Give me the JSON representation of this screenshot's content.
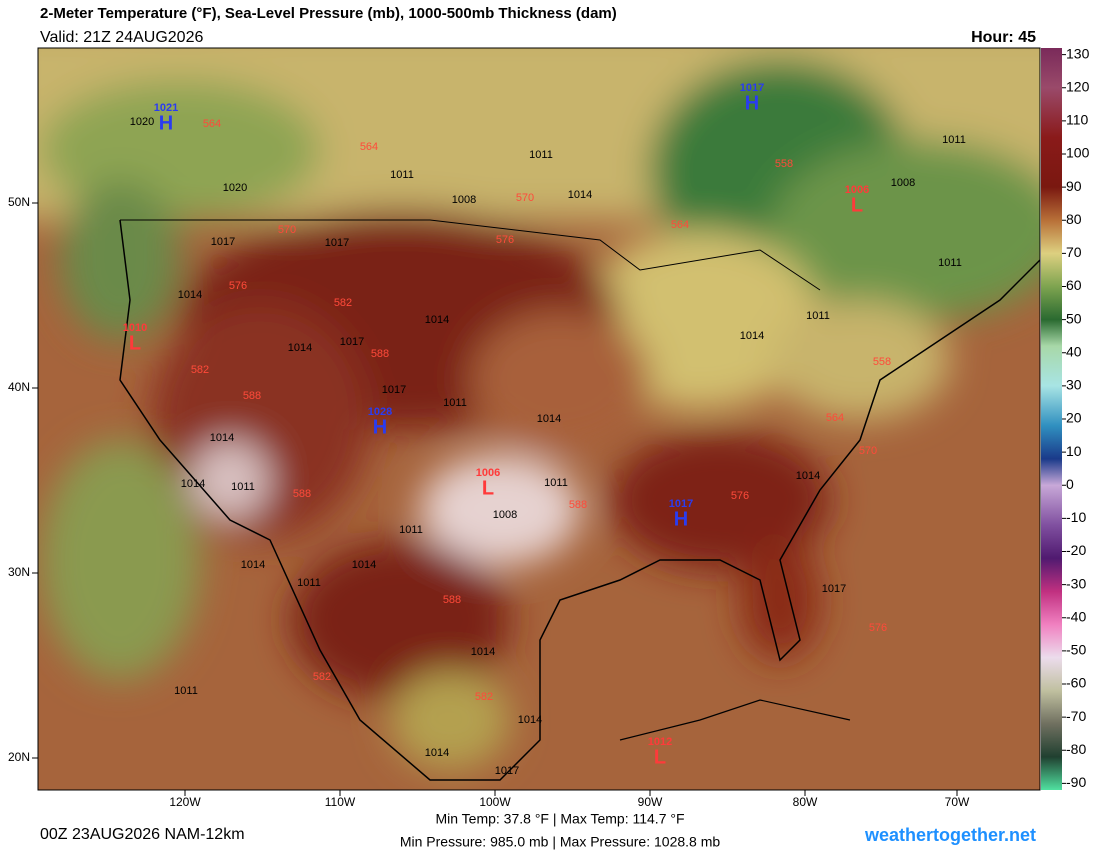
{
  "header": {
    "title": "2-Meter Temperature (°F), Sea-Level Pressure (mb), 1000-500mb Thickness (dam)",
    "valid": "Valid: 21Z 24AUG2026",
    "hour": "Hour: 45"
  },
  "colorbar": {
    "range": [
      -92,
      132
    ],
    "ticks": [
      130,
      120,
      110,
      100,
      90,
      80,
      70,
      60,
      50,
      40,
      30,
      20,
      10,
      0,
      -10,
      -20,
      -30,
      -40,
      -50,
      -60,
      -70,
      -80,
      -90
    ],
    "stops": [
      {
        "value": 132,
        "color": "#7a2a5a"
      },
      {
        "value": 120,
        "color": "#9a4a6a"
      },
      {
        "value": 105,
        "color": "#8a1a1a"
      },
      {
        "value": 90,
        "color": "#7a1810"
      },
      {
        "value": 80,
        "color": "#b87038"
      },
      {
        "value": 70,
        "color": "#ddd080"
      },
      {
        "value": 60,
        "color": "#7ea450"
      },
      {
        "value": 50,
        "color": "#2a6a30"
      },
      {
        "value": 42,
        "color": "#a8d8a8"
      },
      {
        "value": 30,
        "color": "#a8e4e4"
      },
      {
        "value": 18,
        "color": "#3090c0"
      },
      {
        "value": 8,
        "color": "#1a3a8a"
      },
      {
        "value": 0,
        "color": "#c8a8d8"
      },
      {
        "value": -12,
        "color": "#8050a0"
      },
      {
        "value": -22,
        "color": "#501a70"
      },
      {
        "value": -32,
        "color": "#c03080"
      },
      {
        "value": -42,
        "color": "#f080c0"
      },
      {
        "value": -52,
        "color": "#ecdcec"
      },
      {
        "value": -62,
        "color": "#c0c0a0"
      },
      {
        "value": -72,
        "color": "#707060"
      },
      {
        "value": -82,
        "color": "#204030"
      },
      {
        "value": -92,
        "color": "#50e0a0"
      }
    ]
  },
  "longitudes": [
    "120W",
    "110W",
    "100W",
    "90W",
    "80W",
    "70W"
  ],
  "latitudes": [
    "50N",
    "40N",
    "30N",
    "20N"
  ],
  "centers": [
    {
      "letter": "H",
      "pressure": "1021"
    },
    {
      "letter": "H",
      "pressure": "1017"
    },
    {
      "letter": "L",
      "pressure": "1006"
    },
    {
      "letter": "L",
      "pressure": "1010"
    },
    {
      "letter": "H",
      "pressure": "1028"
    },
    {
      "letter": "L",
      "pressure": "1006"
    },
    {
      "letter": "H",
      "pressure": "1017"
    },
    {
      "letter": "L",
      "pressure": "1012"
    }
  ],
  "isobar_labels": [
    "1020",
    "1020",
    "1017",
    "1017",
    "1011",
    "1008",
    "1011",
    "1014",
    "1008",
    "1011",
    "1011",
    "1011",
    "1014",
    "1014",
    "1014",
    "1017",
    "1014",
    "1017",
    "1011",
    "1014",
    "1014",
    "1014",
    "1011",
    "1011",
    "1008",
    "1011",
    "1014",
    "1014",
    "1011",
    "1014",
    "1017",
    "1014",
    "1011",
    "1014",
    "1014",
    "1017"
  ],
  "thickness_labels": [
    "564",
    "564",
    "570",
    "576",
    "570",
    "576",
    "582",
    "588",
    "582",
    "588",
    "588",
    "588",
    "582",
    "582",
    "588",
    "576",
    "564",
    "570",
    "558",
    "558",
    "564",
    "576"
  ],
  "footer": {
    "run": "00Z 23AUG2026 NAM-12km",
    "temps": "Min Temp: 37.8 °F | Max Temp: 114.7 °F",
    "pressures": "Min Pressure: 985.0 mb | Max Pressure: 1028.8 mb",
    "site": "weathertogether.net"
  }
}
